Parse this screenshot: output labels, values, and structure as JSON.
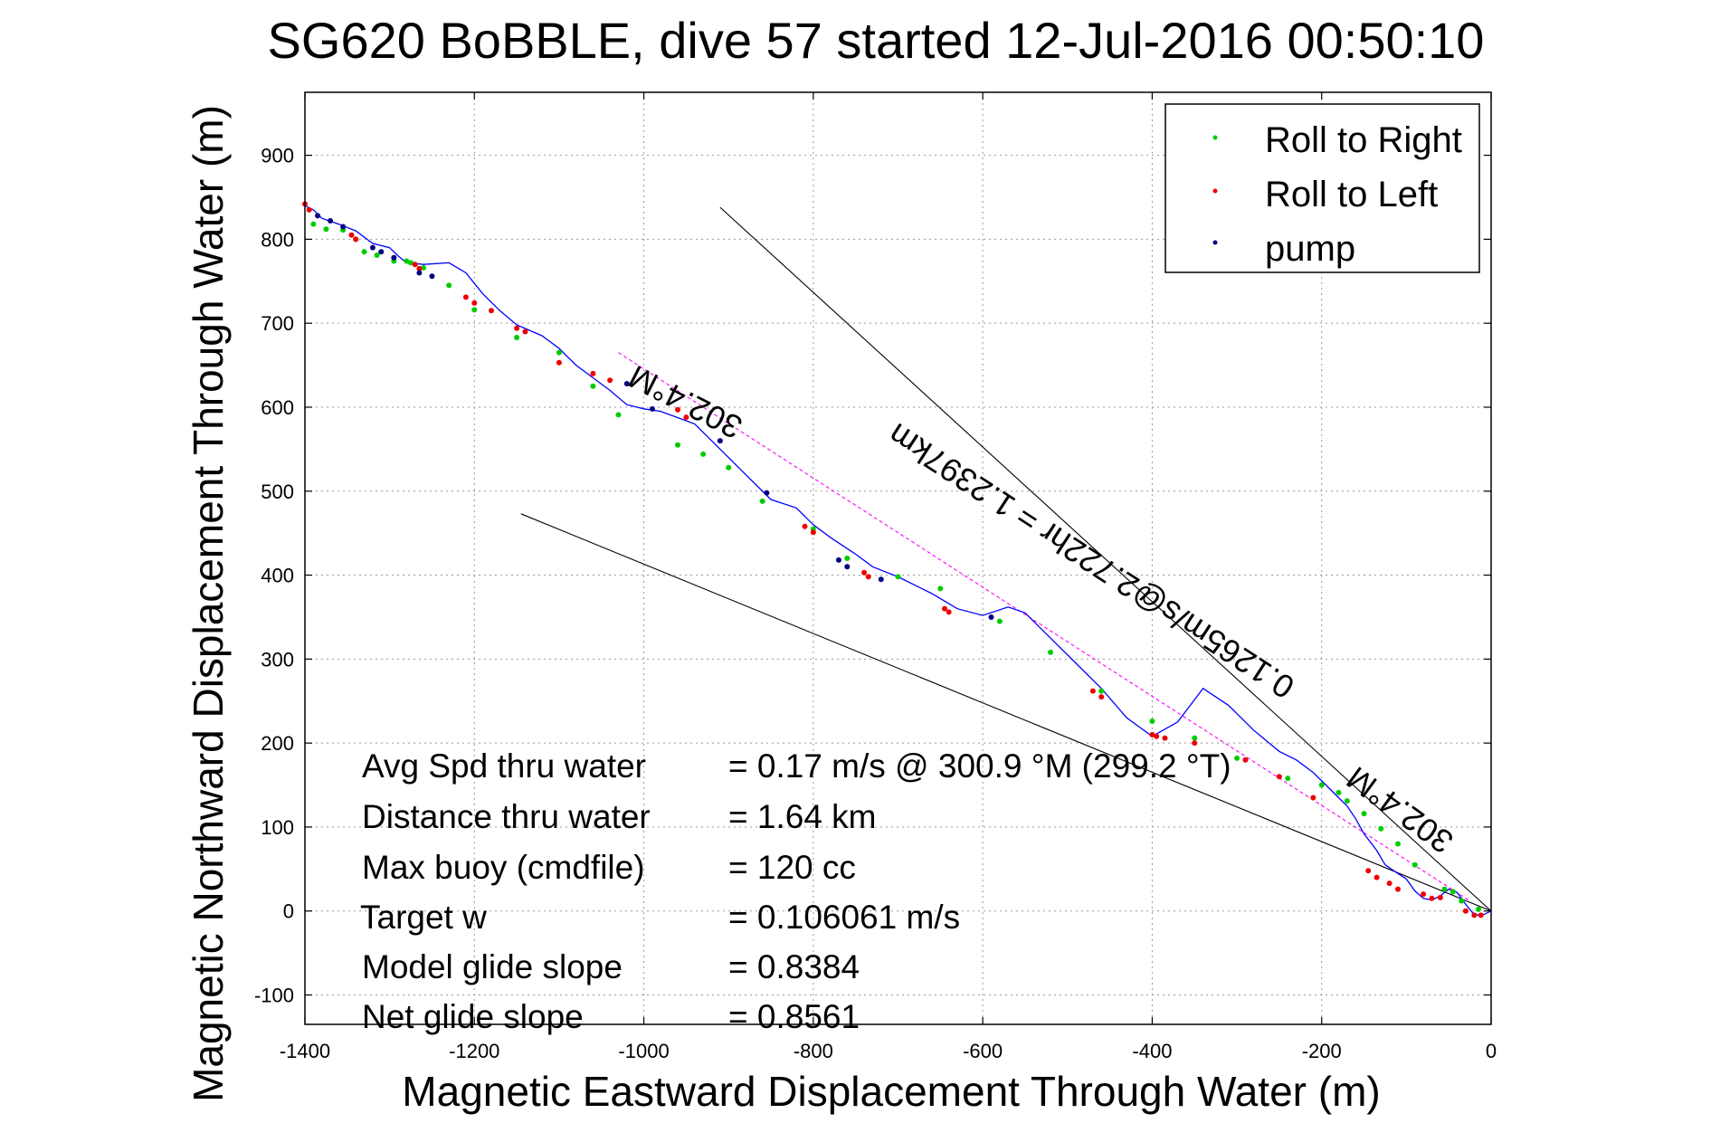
{
  "chart_data": {
    "type": "line",
    "title": "SG620 BoBBLE, dive 57 started 12-Jul-2016 00:50:10",
    "xlabel": "Magnetic Eastward Displacement Through Water (m)",
    "ylabel": "Magnetic Northward Displacement Through Water (m)",
    "xlim": [
      -1400,
      0
    ],
    "ylim": [
      -135,
      975
    ],
    "xticks": [
      -1400,
      -1200,
      -1000,
      -800,
      -600,
      -400,
      -200,
      0
    ],
    "yticks": [
      -100,
      0,
      100,
      200,
      300,
      400,
      500,
      600,
      700,
      800,
      900
    ],
    "grid": true,
    "legend": {
      "placement": "top-right",
      "entries": [
        {
          "label": "Roll to Right",
          "color": "#00cc00"
        },
        {
          "label": "Roll to Left",
          "color": "#ee0000"
        },
        {
          "label": "pump",
          "color": "#000080"
        }
      ]
    },
    "track": {
      "name": "",
      "color": "#0000ff",
      "x": [
        0,
        -8,
        -15,
        -22,
        -30,
        -40,
        -50,
        -60,
        -70,
        -80,
        -90,
        -100,
        -115,
        -125,
        -135,
        -150,
        -160,
        -170,
        -180,
        -195,
        -210,
        -230,
        -250,
        -280,
        -310,
        -340,
        -370,
        -400,
        -430,
        -460,
        -490,
        -520,
        -550,
        -570,
        -600,
        -630,
        -660,
        -700,
        -730,
        -750,
        -780,
        -800,
        -820,
        -850,
        -880,
        -900,
        -920,
        -940,
        -980,
        -1000,
        -1020,
        -1040,
        -1060,
        -1080,
        -1100,
        -1120,
        -1150,
        -1170,
        -1190,
        -1210,
        -1230,
        -1260,
        -1280,
        -1290,
        -1300,
        -1320,
        -1340,
        -1360,
        -1380,
        -1390,
        -1400
      ],
      "y": [
        0,
        -4,
        -5,
        -2,
        8,
        22,
        26,
        18,
        13,
        15,
        24,
        38,
        48,
        55,
        72,
        92,
        110,
        125,
        135,
        150,
        165,
        180,
        190,
        215,
        245,
        265,
        225,
        208,
        230,
        265,
        295,
        325,
        355,
        362,
        352,
        360,
        378,
        398,
        410,
        425,
        445,
        460,
        480,
        490,
        520,
        540,
        560,
        580,
        595,
        598,
        603,
        620,
        635,
        650,
        670,
        685,
        698,
        715,
        735,
        760,
        772,
        770,
        772,
        780,
        790,
        795,
        810,
        818,
        825,
        835,
        840
      ]
    },
    "roll_right_x": [
      -1390,
      -1375,
      -1355,
      -1340,
      -1330,
      -1315,
      -1295,
      -1280,
      -1275,
      -1260,
      -1230,
      -1200,
      -1150,
      -1100,
      -1060,
      -1030,
      -960,
      -930,
      -900,
      -860,
      -800,
      -760,
      -700,
      -650,
      -580,
      -520,
      -460,
      -400,
      -350,
      -300,
      -240,
      -200,
      -180,
      -170,
      -150,
      -130,
      -110,
      -90,
      -55,
      -45,
      -35,
      -15
    ],
    "roll_right_y": [
      818,
      812,
      811,
      800,
      785,
      781,
      774,
      774,
      772,
      766,
      745,
      716,
      683,
      665,
      625,
      591,
      555,
      544,
      528,
      488,
      455,
      420,
      398,
      384,
      345,
      308,
      262,
      226,
      206,
      182,
      158,
      150,
      141,
      131,
      116,
      98,
      80,
      55,
      26,
      23,
      12,
      2
    ],
    "roll_left_x": [
      -1400,
      -1395,
      -1345,
      -1340,
      -1270,
      -1265,
      -1210,
      -1200,
      -1180,
      -1150,
      -1140,
      -1100,
      -1060,
      -1040,
      -960,
      -950,
      -810,
      -800,
      -740,
      -735,
      -645,
      -640,
      -470,
      -460,
      -400,
      -395,
      -385,
      -350,
      -290,
      -250,
      -210,
      -145,
      -135,
      -120,
      -110,
      -80,
      -70,
      -60,
      -30,
      -20,
      -12
    ],
    "roll_left_y": [
      842,
      835,
      805,
      800,
      770,
      765,
      731,
      724,
      715,
      694,
      690,
      653,
      640,
      632,
      597,
      588,
      458,
      451,
      403,
      398,
      360,
      356,
      262,
      255,
      210,
      208,
      206,
      200,
      180,
      160,
      135,
      48,
      40,
      33,
      26,
      20,
      15,
      16,
      0,
      -5,
      -5
    ],
    "pump_x": [
      -1385,
      -1370,
      -1355,
      -1320,
      -1310,
      -1295,
      -1265,
      -1250,
      -1020,
      -990,
      -910,
      -855,
      -770,
      -760,
      -720,
      -590
    ],
    "pump_y": [
      828,
      822,
      815,
      790,
      785,
      778,
      760,
      756,
      628,
      598,
      560,
      498,
      418,
      410,
      395,
      350
    ],
    "guide_lines": [
      {
        "x": [
          -1030,
          -25
        ],
        "y": [
          665,
          12
        ],
        "color": "#ff00ff",
        "dash": true
      },
      {
        "x": [
          -910,
          0
        ],
        "y": [
          838,
          0
        ],
        "color": "#000000",
        "dash": false
      },
      {
        "x": [
          -1145,
          0
        ],
        "y": [
          473,
          0
        ],
        "color": "#000000",
        "dash": false
      }
    ],
    "annotations": [
      {
        "text": "302.4°M",
        "x": -945,
        "y": 618,
        "angle": 207
      },
      {
        "text": "302.4°M",
        "x": -100,
        "y": 131,
        "angle": 216
      },
      {
        "text": "0.1265m/s@2.722hr = 1.2397km",
        "x": -465,
        "y": 428,
        "angle": 213
      }
    ],
    "stats": [
      {
        "label": "Avg Spd thru water",
        "value": "=  0.17 m/s @ 300.9 °M (299.2 °T)"
      },
      {
        "label": "Distance thru water",
        "value": "=  1.64 km"
      },
      {
        "label": "Max buoy (cmdfile)",
        "value": "= 120 cc"
      },
      {
        "label": "Target w",
        "value": "= 0.106061 m/s"
      },
      {
        "label": "Model glide slope",
        "value": "= 0.8384"
      },
      {
        "label": "Net glide slope",
        "value": "= 0.8561"
      }
    ]
  }
}
